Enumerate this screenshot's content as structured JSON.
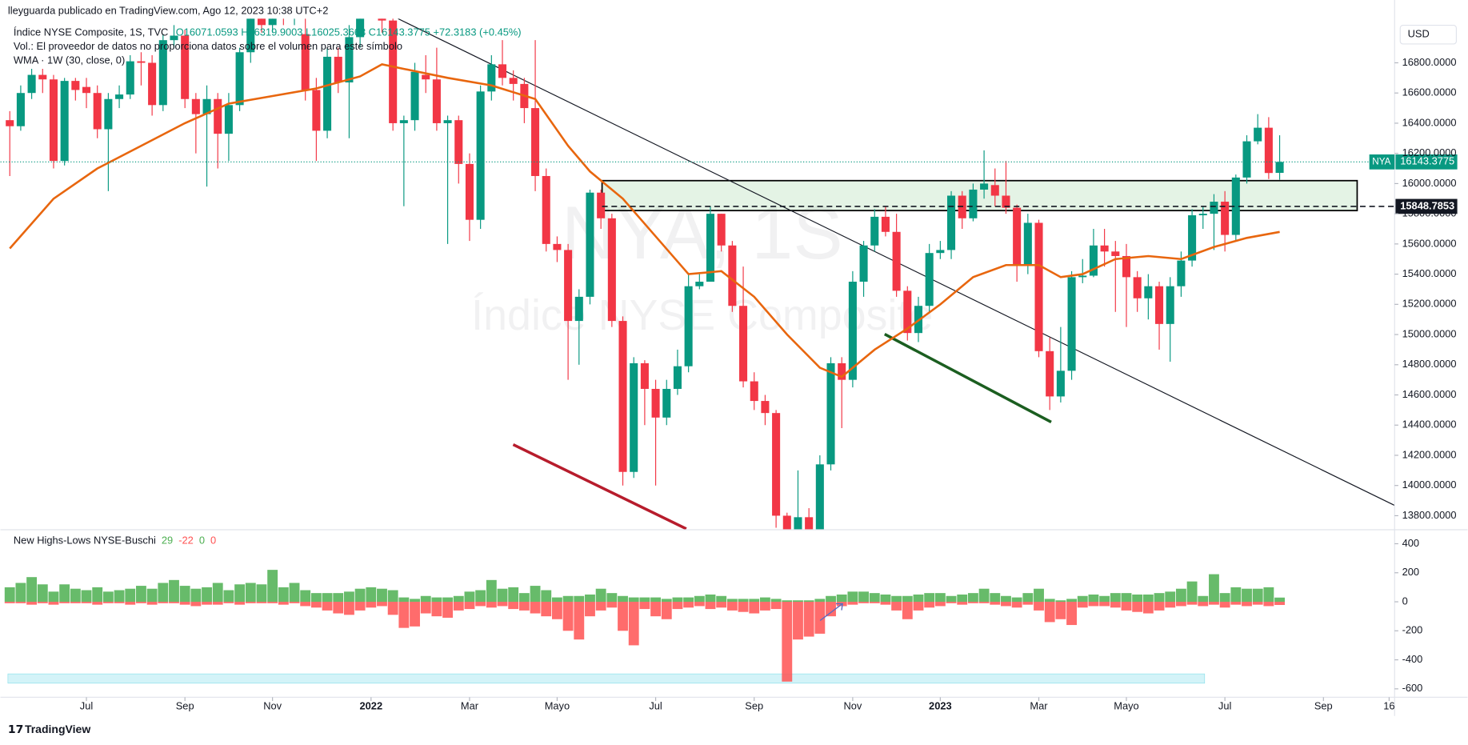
{
  "header": {
    "publisher": "lleyguarda publicado en TradingView.com, Ago 12, 2023 10:38 UTC+2",
    "symbol": "Índice NYSE Composite, 1S, TVC",
    "ohlc": "O16071.0593 H16319.9003 L16025.3663 C16143.3775 +72.3183 (+0.45%)",
    "volume_note": "Vol.: El proveedor de datos no proporciona datos sobre el volumen para este símbolo",
    "wma_label": "WMA · 1W (30, close, 0)"
  },
  "watermark": {
    "symbol": "NYA, 1S",
    "name": "Índice NYSE Composite"
  },
  "currency": "USD",
  "brand": "TradingView",
  "chart_data": [
    {
      "type": "candlestick",
      "tag": "NYA",
      "colors": {
        "up": "#089981",
        "down": "#f23645"
      },
      "open": [
        16420,
        16380,
        16600,
        16720,
        16690,
        16150,
        16680,
        16640,
        16600,
        16360,
        16560,
        16590,
        16810,
        16800,
        16520,
        16950,
        16980,
        16560,
        16460,
        16560,
        16330,
        16520,
        16870,
        17150,
        17050,
        17200,
        17100,
        16990,
        16620,
        16350,
        16840,
        16670,
        16970,
        17150,
        17250,
        17080,
        16400,
        16420,
        16720,
        16690,
        16400,
        16420,
        16130,
        15760,
        16610,
        16790,
        16700,
        16660,
        16500,
        16050,
        15600,
        15560,
        15090,
        15250,
        15940,
        15770,
        15090,
        14090,
        14810,
        14640,
        14450,
        14640,
        14790,
        15320,
        15350,
        15800,
        15590,
        15190,
        14690,
        14560,
        14480,
        13800,
        13700,
        13790,
        13700,
        14140,
        14810,
        14700,
        15350,
        15590,
        15780,
        15680,
        15290,
        15010,
        15190,
        15540,
        15560,
        15920,
        15770,
        15960,
        15990,
        15920,
        15840,
        15460,
        15740,
        14890,
        14590,
        14760,
        15380,
        15390,
        15590,
        15550,
        15520,
        15380,
        15240,
        15320,
        15070,
        15320,
        15490,
        15790,
        15800,
        15880,
        15660,
        16040,
        16280,
        16370,
        16071.0593
      ],
      "high": [
        16480,
        16650,
        16760,
        16760,
        16720,
        16700,
        16700,
        16700,
        16650,
        16600,
        16650,
        16850,
        16870,
        16850,
        16990,
        17050,
        17020,
        16600,
        16650,
        16600,
        16600,
        16900,
        17200,
        17200,
        17250,
        17250,
        17200,
        17100,
        16700,
        16900,
        16900,
        17050,
        17200,
        17300,
        17300,
        17100,
        16450,
        16800,
        16850,
        16900,
        16450,
        16450,
        16200,
        16650,
        16850,
        16950,
        16750,
        16700,
        16950,
        16100,
        15650,
        15600,
        15300,
        15960,
        15960,
        15800,
        15120,
        14850,
        14830,
        14700,
        14700,
        14900,
        15400,
        15400,
        15850,
        15800,
        15620,
        15450,
        14750,
        14600,
        14500,
        13820,
        14100,
        13850,
        14200,
        14850,
        14850,
        15420,
        15620,
        15830,
        15850,
        15800,
        15320,
        15250,
        15600,
        15620,
        15950,
        15950,
        16000,
        16220,
        16100,
        16150,
        15860,
        15800,
        15760,
        14980,
        15050,
        15420,
        15500,
        15700,
        15700,
        15620,
        15600,
        15420,
        15400,
        15350,
        15380,
        15550,
        15830,
        15850,
        15930,
        15950,
        16060,
        16320,
        16460,
        16440,
        16319.9003
      ],
      "low": [
        16050,
        16350,
        16560,
        16600,
        16100,
        16120,
        16550,
        16500,
        16300,
        15950,
        16500,
        16560,
        16650,
        16450,
        16480,
        16900,
        16500,
        16200,
        15980,
        16100,
        16150,
        16480,
        16800,
        17000,
        17000,
        17050,
        17050,
        16550,
        16150,
        16300,
        16600,
        16300,
        16900,
        17100,
        17000,
        16350,
        15850,
        16350,
        16600,
        16350,
        15600,
        16000,
        15620,
        15700,
        16550,
        16650,
        16550,
        16400,
        15950,
        15550,
        15480,
        14700,
        14800,
        15200,
        15700,
        15050,
        14000,
        14050,
        14400,
        14000,
        14400,
        14600,
        14750,
        15300,
        15350,
        15550,
        15150,
        14650,
        14500,
        14400,
        13720,
        13650,
        13650,
        13650,
        13650,
        14100,
        14380,
        14650,
        15250,
        15550,
        15650,
        15250,
        14960,
        14950,
        15150,
        15500,
        15500,
        15700,
        15750,
        15900,
        15850,
        15800,
        15350,
        15400,
        14850,
        14500,
        14550,
        14700,
        15340,
        15380,
        15450,
        15150,
        15050,
        15150,
        15100,
        14900,
        14820,
        15250,
        15450,
        15700,
        15560,
        15550,
        15620,
        16000,
        16260,
        16030,
        16025.3663
      ],
      "close": [
        16380,
        16600,
        16720,
        16690,
        16150,
        16680,
        16620,
        16600,
        16360,
        16560,
        16590,
        16810,
        16800,
        16520,
        16950,
        16980,
        16560,
        16460,
        16560,
        16330,
        16520,
        16870,
        17150,
        17050,
        17200,
        17100,
        17150,
        16620,
        16350,
        16840,
        16670,
        16970,
        17150,
        17250,
        17080,
        16400,
        16420,
        16740,
        16690,
        16400,
        16420,
        16130,
        15760,
        16610,
        16790,
        16700,
        16660,
        16500,
        16050,
        15600,
        15560,
        15090,
        15250,
        15940,
        15770,
        15090,
        14090,
        14810,
        14640,
        14450,
        14640,
        14790,
        15320,
        15350,
        15800,
        15590,
        15190,
        14690,
        14560,
        14480,
        13800,
        13700,
        13790,
        13700,
        14140,
        14810,
        14700,
        15350,
        15590,
        15780,
        15680,
        15290,
        15010,
        15190,
        15540,
        15560,
        15920,
        15770,
        15960,
        16000,
        15920,
        15840,
        15460,
        15740,
        14890,
        14590,
        14760,
        15380,
        15390,
        15590,
        15550,
        15520,
        15380,
        15240,
        15320,
        15070,
        15320,
        15490,
        15790,
        15800,
        15880,
        15660,
        16040,
        16280,
        16370,
        16070,
        16143.3775
      ],
      "overlay": {
        "color": "#e8660e",
        "x": [
          0,
          4,
          8,
          12,
          16,
          20,
          24,
          28,
          32,
          34,
          36,
          40,
          44,
          48,
          51,
          53,
          56,
          59,
          62,
          65,
          68,
          71,
          74,
          76,
          79,
          82,
          85,
          88,
          91,
          94,
          96,
          98,
          101,
          104,
          107,
          110,
          113,
          116
        ],
        "values": [
          15570,
          15900,
          16100,
          16250,
          16400,
          16530,
          16580,
          16630,
          16710,
          16790,
          16760,
          16700,
          16650,
          16560,
          16250,
          16080,
          15900,
          15650,
          15400,
          15420,
          15250,
          15000,
          14780,
          14720,
          14900,
          15040,
          15200,
          15380,
          15460,
          15460,
          15380,
          15400,
          15500,
          15520,
          15500,
          15580,
          15640,
          15680
        ]
      },
      "last_price": 16143.3775,
      "level": 15848.7853,
      "xlim": [
        -0.855,
        126.5
      ],
      "ylim": [
        13707,
        17092
      ],
      "xticks": [
        {
          "value": 7,
          "label": "Jul"
        },
        {
          "value": 16,
          "label": "Sep"
        },
        {
          "value": 24,
          "label": "Nov"
        },
        {
          "value": 33,
          "label": "2022"
        },
        {
          "value": 42,
          "label": "Mar"
        },
        {
          "value": 50,
          "label": "Mayo"
        },
        {
          "value": 59,
          "label": "Jul"
        },
        {
          "value": 68,
          "label": "Sep"
        },
        {
          "value": 77,
          "label": "Nov"
        },
        {
          "value": 85,
          "label": "2023"
        },
        {
          "value": 94,
          "label": "Mar"
        },
        {
          "value": 102,
          "label": "Mayo"
        },
        {
          "value": 111,
          "label": "Jul"
        },
        {
          "value": 120,
          "label": "Sep"
        },
        {
          "value": 126,
          "label": "16"
        }
      ],
      "yticks": [
        {
          "value": 13800,
          "label": "13800.0000"
        },
        {
          "value": 14000,
          "label": "14000.0000"
        },
        {
          "value": 14200,
          "label": "14200.0000"
        },
        {
          "value": 14400,
          "label": "14400.0000"
        },
        {
          "value": 14600,
          "label": "14600.0000"
        },
        {
          "value": 14800,
          "label": "14800.0000"
        },
        {
          "value": 15000,
          "label": "15000.0000"
        },
        {
          "value": 15200,
          "label": "15200.0000"
        },
        {
          "value": 15400,
          "label": "15400.0000"
        },
        {
          "value": 15600,
          "label": "15600.0000"
        },
        {
          "value": 15800,
          "label": "15800.0000"
        },
        {
          "value": 16000,
          "label": "16000.0000"
        },
        {
          "value": 16200,
          "label": "16200.0000"
        },
        {
          "value": 16400,
          "label": "16400.0000"
        },
        {
          "value": 16600,
          "label": "16600.0000"
        },
        {
          "value": 16800,
          "label": "16800.0000"
        }
      ]
    },
    {
      "type": "bar",
      "title": "New Highs-Lows NYSE-Buschi",
      "series": [
        {
          "color": "#4caf50",
          "values": [
            100,
            130,
            170,
            120,
            70,
            120,
            90,
            80,
            100,
            70,
            80,
            90,
            110,
            90,
            130,
            150,
            110,
            90,
            100,
            130,
            80,
            120,
            130,
            120,
            220,
            100,
            130,
            80,
            60,
            60,
            60,
            70,
            90,
            100,
            90,
            80,
            30,
            20,
            40,
            30,
            30,
            40,
            70,
            80,
            150,
            90,
            100,
            60,
            110,
            80,
            30,
            40,
            40,
            50,
            90,
            60,
            40,
            30,
            30,
            30,
            20,
            30,
            30,
            40,
            50,
            40,
            20,
            20,
            20,
            30,
            20,
            10,
            10,
            10,
            20,
            40,
            50,
            70,
            70,
            60,
            50,
            40,
            40,
            50,
            60,
            60,
            40,
            50,
            60,
            90,
            60,
            40,
            30,
            60,
            90,
            20,
            10,
            20,
            40,
            50,
            40,
            60,
            60,
            50,
            50,
            60,
            70,
            90,
            140,
            40,
            190,
            60,
            100,
            90,
            90,
            100,
            29
          ]
        },
        {
          "color": "#ff5252",
          "values": [
            -10,
            -10,
            -20,
            -10,
            -20,
            -10,
            -10,
            -10,
            -20,
            -10,
            -10,
            -20,
            -10,
            -20,
            -10,
            -10,
            -20,
            -30,
            -20,
            -20,
            -10,
            -20,
            -10,
            -10,
            -10,
            -20,
            -10,
            -30,
            -40,
            -60,
            -80,
            -90,
            -60,
            -40,
            -30,
            -90,
            -180,
            -170,
            -80,
            -100,
            -110,
            -60,
            -50,
            -30,
            -40,
            -30,
            -50,
            -60,
            -80,
            -100,
            -120,
            -200,
            -260,
            -100,
            -60,
            -40,
            -200,
            -300,
            -50,
            -100,
            -120,
            -50,
            -40,
            -30,
            -50,
            -40,
            -60,
            -70,
            -80,
            -60,
            -50,
            -550,
            -260,
            -240,
            -220,
            -100,
            -30,
            -20,
            -10,
            -10,
            -20,
            -60,
            -120,
            -60,
            -40,
            -30,
            -10,
            -20,
            -10,
            -10,
            -20,
            -30,
            -40,
            -20,
            -60,
            -140,
            -120,
            -160,
            -40,
            -30,
            -30,
            -40,
            -60,
            -70,
            -80,
            -60,
            -40,
            -30,
            -20,
            -30,
            -20,
            -40,
            -20,
            -30,
            -20,
            -30,
            -22
          ]
        }
      ],
      "legend_extra": [
        0,
        0
      ],
      "xlim": [
        -0.855,
        126.5
      ],
      "ylim": [
        -658,
        490
      ],
      "yticks": [
        400,
        200,
        0,
        -200,
        -400,
        -600
      ]
    }
  ]
}
